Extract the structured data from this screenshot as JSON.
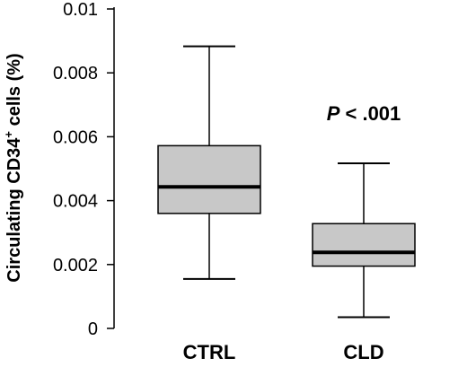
{
  "chart_data": {
    "type": "box",
    "categories": [
      "CTRL",
      "CLD"
    ],
    "boxes": [
      {
        "category": "CTRL",
        "whisker_low": 0.00155,
        "q1": 0.0036,
        "median": 0.00443,
        "q3": 0.00572,
        "whisker_high": 0.00883
      },
      {
        "category": "CLD",
        "whisker_low": 0.00035,
        "q1": 0.00195,
        "median": 0.00238,
        "q3": 0.00328,
        "whisker_high": 0.00517
      }
    ],
    "ylim": [
      0,
      0.01
    ],
    "yticks": [
      "0",
      "0.002",
      "0.004",
      "0.006",
      "0.008",
      "0.01"
    ],
    "ytick_values": [
      0,
      0.002,
      0.004,
      0.006,
      0.008,
      0.01
    ],
    "ylabel": "Circulating CD34",
    "ylabel_superscript": "+",
    "ylabel_suffix": " cells (%)",
    "annotation": {
      "italic": "P",
      "text": " < .001"
    },
    "grid": false,
    "colors": {
      "box_fill": "#c8c8c8",
      "line": "#000000"
    }
  }
}
